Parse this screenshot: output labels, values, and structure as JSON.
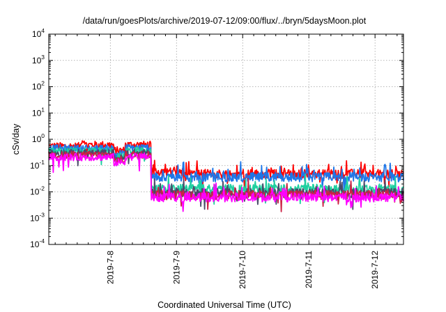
{
  "chart_data": {
    "type": "line",
    "title": "/data/run/goesPlots/archive/2019-07-12/09:00/flux/../bryn/5daysMoon.plot",
    "xlabel": "Coordinated Universal Time (UTC)",
    "ylabel": "cSv/day",
    "y_scale": "log",
    "ylim_exp": [
      -4,
      4
    ],
    "yticks": [
      {
        "base": "10",
        "exp": "-4",
        "value": -4
      },
      {
        "base": "10",
        "exp": "-3",
        "value": -3
      },
      {
        "base": "10",
        "exp": "-2",
        "value": -2
      },
      {
        "base": "10",
        "exp": "-1",
        "value": -1
      },
      {
        "base": "10",
        "exp": "0",
        "value": 0
      },
      {
        "base": "10",
        "exp": "1",
        "value": 1
      },
      {
        "base": "10",
        "exp": "2",
        "value": 2
      },
      {
        "base": "10",
        "exp": "3",
        "value": 3
      },
      {
        "base": "10",
        "exp": "4",
        "value": 4
      }
    ],
    "xlim_days": [
      7.07,
      12.43
    ],
    "xticks": [
      {
        "label": "2019-7-8",
        "day": 8
      },
      {
        "label": "2019-7-9",
        "day": 9
      },
      {
        "label": "2019-7-10",
        "day": 10
      },
      {
        "label": "2019-7-11",
        "day": 11
      },
      {
        "label": "2019-7-12",
        "day": 12
      }
    ],
    "grid": true,
    "legend": "none",
    "series": [
      {
        "color": "#ff0000",
        "levels": [
          {
            "from": 7.07,
            "to": 7.55,
            "y": 0.55
          },
          {
            "from": 7.55,
            "to": 7.62,
            "y": 0.9
          },
          {
            "from": 7.62,
            "to": 8.05,
            "y": 0.62
          },
          {
            "from": 8.05,
            "to": 8.22,
            "y": 0.38
          },
          {
            "from": 8.22,
            "to": 8.62,
            "y": 0.62
          },
          {
            "from": 8.62,
            "to": 9.15,
            "y": 0.06
          },
          {
            "from": 9.15,
            "to": 12.43,
            "y": 0.048
          }
        ]
      },
      {
        "color": "#1f77e8",
        "levels": [
          {
            "from": 7.07,
            "to": 8.05,
            "y": 0.45
          },
          {
            "from": 8.05,
            "to": 8.22,
            "y": 0.28
          },
          {
            "from": 8.22,
            "to": 8.62,
            "y": 0.48
          },
          {
            "from": 8.62,
            "to": 12.43,
            "y": 0.036
          }
        ]
      },
      {
        "color": "#1fd0a0",
        "levels": [
          {
            "from": 7.07,
            "to": 8.05,
            "y": 0.35
          },
          {
            "from": 8.05,
            "to": 8.22,
            "y": 0.22
          },
          {
            "from": 8.22,
            "to": 8.62,
            "y": 0.36
          },
          {
            "from": 8.62,
            "to": 12.43,
            "y": 0.013
          }
        ]
      },
      {
        "color": "#4a4a6a",
        "levels": [
          {
            "from": 7.07,
            "to": 8.05,
            "y": 0.3
          },
          {
            "from": 8.05,
            "to": 8.22,
            "y": 0.19
          },
          {
            "from": 8.22,
            "to": 8.62,
            "y": 0.3
          },
          {
            "from": 8.62,
            "to": 12.43,
            "y": 0.009
          }
        ]
      },
      {
        "color": "#cc2244",
        "levels": [
          {
            "from": 7.07,
            "to": 8.05,
            "y": 0.25
          },
          {
            "from": 8.05,
            "to": 8.22,
            "y": 0.16
          },
          {
            "from": 8.22,
            "to": 8.62,
            "y": 0.26
          },
          {
            "from": 8.62,
            "to": 12.43,
            "y": 0.0075
          }
        ]
      },
      {
        "color": "#ff00ff",
        "levels": [
          {
            "from": 7.07,
            "to": 8.05,
            "y": 0.21
          },
          {
            "from": 8.05,
            "to": 8.22,
            "y": 0.13
          },
          {
            "from": 8.22,
            "to": 8.62,
            "y": 0.22
          },
          {
            "from": 8.62,
            "to": 12.43,
            "y": 0.0062
          }
        ]
      }
    ]
  }
}
